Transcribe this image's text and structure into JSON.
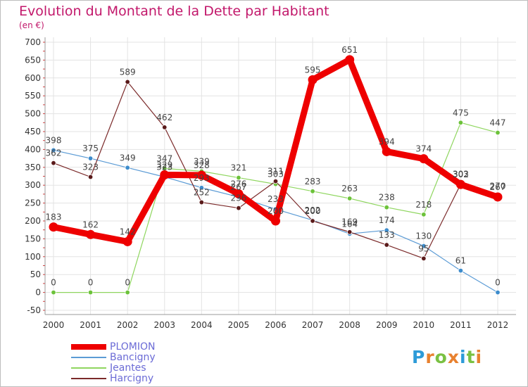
{
  "header": {
    "title": "Evolution du Montant de la Dette par Habitant",
    "unit": "(en €)"
  },
  "logo": {
    "letters": [
      "P",
      "r",
      "o",
      "x",
      "i",
      "t",
      "i"
    ],
    "colors": [
      "#2d9bd8",
      "#e8812f",
      "#7ac143",
      "#e8812f",
      "#2d9bd8",
      "#7ac143",
      "#e8812f"
    ]
  },
  "chart_data": {
    "type": "line",
    "title": "Evolution du Montant de la Dette par Habitant",
    "ylabel": "(en €)",
    "xlabel": "",
    "ylim": [
      -50,
      700
    ],
    "yticks": [
      -50,
      0,
      50,
      100,
      150,
      200,
      250,
      300,
      350,
      400,
      450,
      500,
      550,
      600,
      650,
      700
    ],
    "x": [
      "2000",
      "2001",
      "2002",
      "2003",
      "2004",
      "2005",
      "2006",
      "2007",
      "2008",
      "2009",
      "2010",
      "2011",
      "2012"
    ],
    "grid": true,
    "legend_position": "bottom-left",
    "series": [
      {
        "name": "PLOMION",
        "color": "#ee0000",
        "values": [
          183,
          162,
          142,
          329,
          328,
          276,
          200,
          595,
          651,
          394,
          374,
          302,
          267
        ]
      },
      {
        "name": "Bancigny",
        "color": "#5b9bd5",
        "values": [
          398,
          375,
          349,
          323,
          293,
          267,
          233,
          202,
          164,
          174,
          130,
          61,
          0
        ]
      },
      {
        "name": "Jeantes",
        "color": "#8fd65f",
        "values": [
          0,
          0,
          0,
          347,
          339,
          321,
          303,
          283,
          263,
          238,
          218,
          475,
          447
        ]
      },
      {
        "name": "Harcigny",
        "color": "#7b2a2a",
        "values": [
          362,
          323,
          589,
          462,
          252,
          236,
          311,
          200,
          169,
          133,
          95,
          303,
          270
        ]
      }
    ]
  }
}
